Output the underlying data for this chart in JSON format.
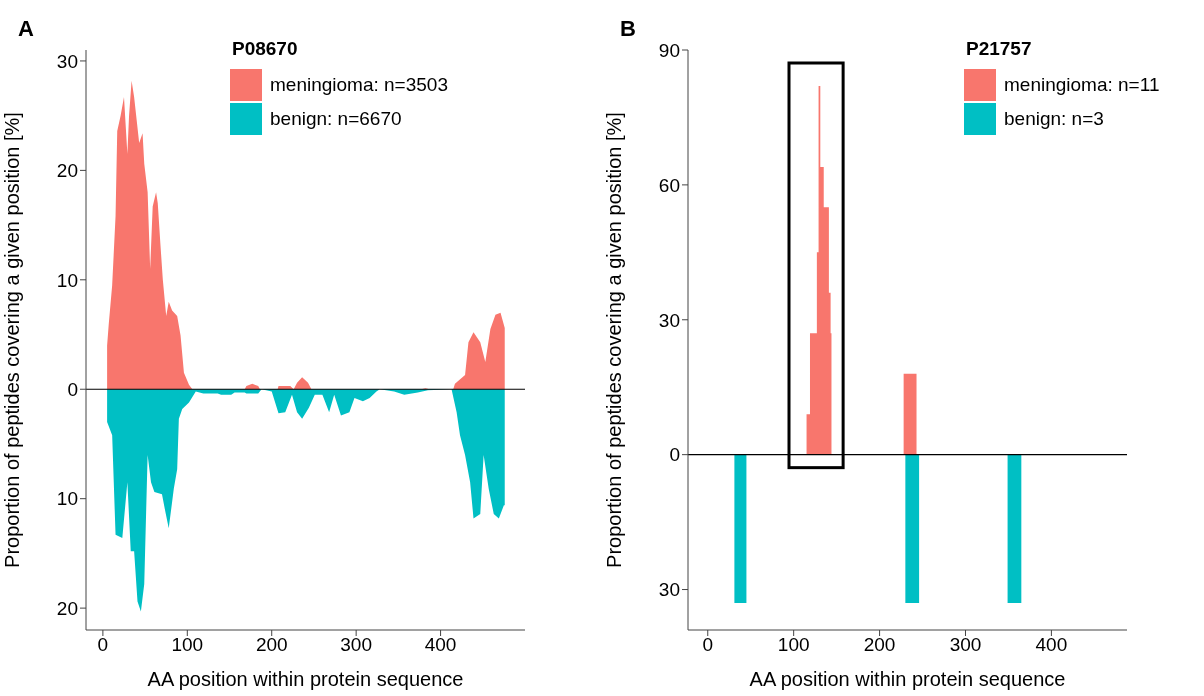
{
  "chart_data": [
    {
      "type": "area",
      "legend_title": "P08670",
      "xlabel": "AA position within protein sequence",
      "ylabel": "Proportion of peptides covering a given position [%]",
      "annotations": [
        "A"
      ],
      "legend": "top",
      "xlim": [
        -20,
        500
      ],
      "xticks": [
        0,
        100,
        200,
        300,
        400
      ],
      "ylim": [
        -22,
        31
      ],
      "yticks": [
        {
          "value": -20,
          "label": "20"
        },
        {
          "value": -10,
          "label": "10"
        },
        0,
        10,
        20,
        30
      ],
      "ref_lines": [
        {
          "axis": "y",
          "value": 0,
          "color": "#000000"
        }
      ],
      "series": [
        {
          "name": "meningioma: n=3503",
          "color": "#f8766d",
          "x": [
            5,
            5,
            7,
            11,
            15,
            17,
            21,
            25,
            29,
            31,
            34,
            37,
            43,
            47,
            49,
            53,
            56,
            59,
            63,
            65,
            68,
            71,
            75,
            78,
            82,
            88,
            92,
            96,
            102,
            106,
            168,
            170,
            177,
            184,
            186,
            207,
            208,
            222,
            226,
            230,
            236,
            243,
            247,
            377,
            382,
            387,
            415,
            417,
            429,
            433,
            439,
            447,
            453,
            459,
            465,
            471,
            476,
            476
          ],
          "values": [
            0,
            4,
            6,
            9.5,
            15.8,
            23.6,
            25,
            26.7,
            21.5,
            25,
            28.2,
            26.7,
            22.5,
            23.4,
            20.6,
            18,
            11,
            16.7,
            18,
            17,
            13.4,
            10,
            6.7,
            8,
            7.2,
            6.7,
            4.9,
            1.5,
            0.4,
            0,
            0,
            0.3,
            0.5,
            0.3,
            0,
            0,
            0.3,
            0.3,
            0,
            0.6,
            1.1,
            0.6,
            0,
            0,
            0.1,
            0,
            0,
            0.5,
            1.3,
            4.3,
            5.2,
            4.3,
            2.5,
            5.5,
            6.8,
            7,
            5.6,
            0
          ]
        },
        {
          "name": "benign: n=6670",
          "color": "#00bfc4",
          "x": [
            5,
            5,
            11,
            15,
            23,
            29,
            33,
            37,
            41,
            45,
            49,
            53,
            57,
            61,
            70,
            74,
            78,
            84,
            88,
            90,
            94,
            102,
            110,
            119,
            136,
            140,
            152,
            156,
            168,
            170,
            184,
            188,
            200,
            208,
            216,
            224,
            230,
            236,
            244,
            251,
            260,
            268,
            274,
            282,
            292,
            298,
            308,
            316,
            324,
            328,
            345,
            357,
            373,
            385,
            413,
            419,
            423,
            429,
            435,
            439,
            447,
            451,
            457,
            463,
            469,
            475,
            476,
            476
          ],
          "values": [
            0,
            -3,
            -4.2,
            -13.3,
            -13.6,
            -8.5,
            -14.8,
            -14.8,
            -19.4,
            -20.3,
            -17.8,
            -6,
            -8.5,
            -9.4,
            -9.6,
            -11.2,
            -12.7,
            -9.1,
            -7.3,
            -2.7,
            -1.8,
            -1.2,
            -0.2,
            -0.4,
            -0.4,
            -0.5,
            -0.5,
            -0.3,
            -0.3,
            -0.4,
            -0.4,
            0,
            -0.2,
            -2.2,
            -2.1,
            -0.5,
            -2.1,
            -2.7,
            -1.7,
            -0.5,
            -0.5,
            -2.1,
            -0.5,
            -2.4,
            -2.1,
            -0.8,
            -1.1,
            -0.8,
            -0.2,
            0,
            -0.2,
            -0.5,
            -0.3,
            -0.1,
            0,
            -2.1,
            -4.2,
            -6,
            -8.5,
            -11.8,
            -11.4,
            -6,
            -9.1,
            -11.4,
            -11.8,
            -10.6,
            -10.6,
            0
          ]
        }
      ]
    },
    {
      "type": "area",
      "legend_title": "P21757",
      "xlabel": "AA position within protein sequence",
      "ylabel": "Proportion of peptides covering a given position [%]",
      "annotations": [
        "B"
      ],
      "legend": "top right",
      "xlim": [
        -23,
        488
      ],
      "xticks": [
        0,
        100,
        200,
        300,
        400
      ],
      "ylim": [
        -39,
        90
      ],
      "yticks": [
        {
          "value": -30,
          "label": "30"
        },
        0,
        30,
        60,
        90
      ],
      "ref_lines": [
        {
          "axis": "y",
          "value": 0,
          "color": "#000000"
        }
      ],
      "series": [
        {
          "name": "meningioma: n=11",
          "color": "#f8766d",
          "x": [
            115,
            115,
            119,
            119,
            127,
            127,
            129,
            129,
            131,
            131,
            135,
            135,
            141,
            141,
            143,
            143,
            144,
            144,
            228,
            228,
            243,
            243
          ],
          "values": [
            0,
            9,
            9,
            27,
            27,
            45,
            45,
            82,
            82,
            64,
            64,
            55,
            55,
            36,
            36,
            27,
            27,
            0,
            0,
            18,
            18,
            0
          ]
        },
        {
          "name": "benign: n=3",
          "color": "#00bfc4",
          "x": [
            31,
            31,
            45,
            45,
            230,
            230,
            246,
            246,
            349,
            349,
            365,
            365
          ],
          "values": [
            0,
            -33,
            -33,
            0,
            0,
            -33,
            -33,
            0,
            0,
            -33,
            -33,
            0
          ]
        }
      ]
    }
  ]
}
